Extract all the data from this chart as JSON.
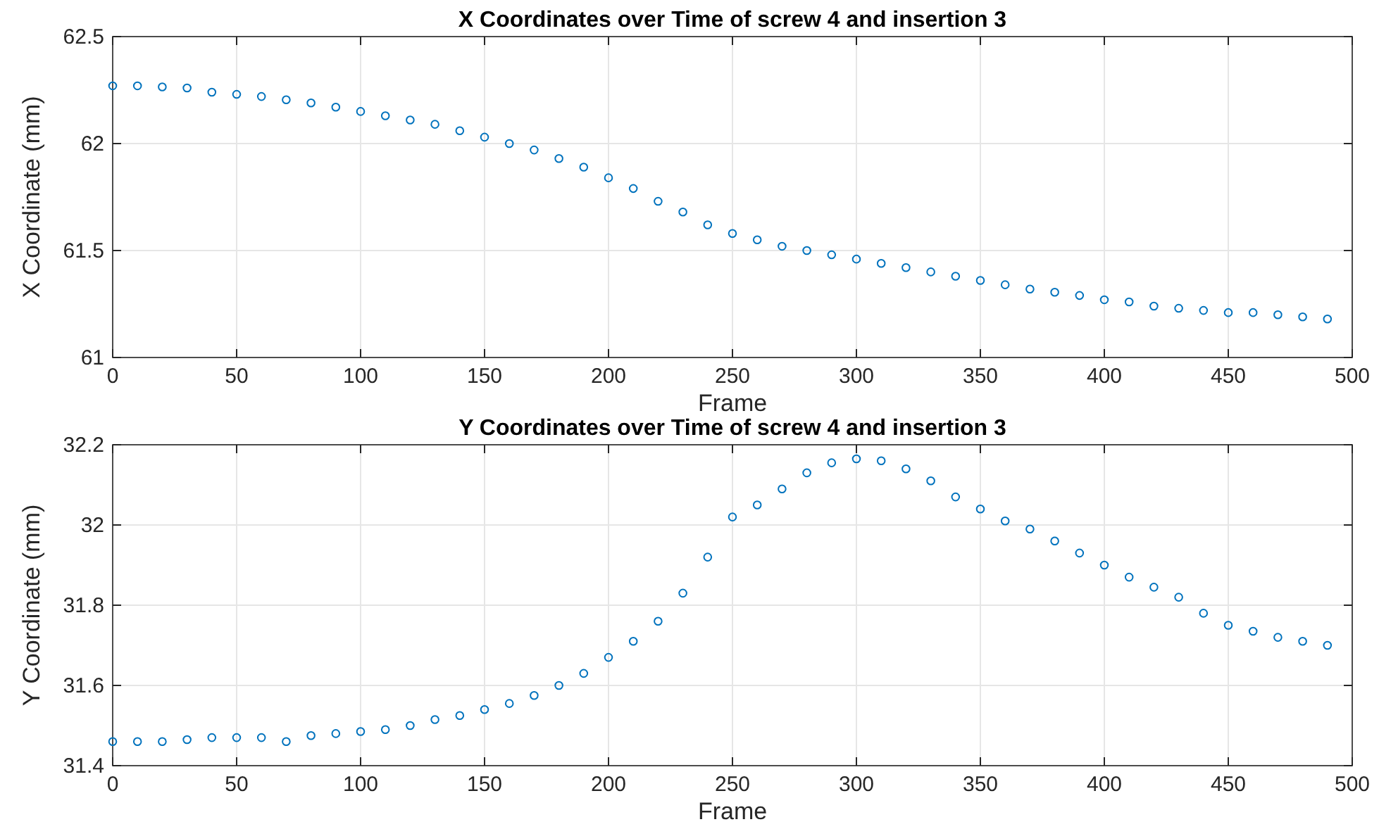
{
  "chart_data": [
    {
      "type": "scatter",
      "title": "X Coordinates over Time of screw 4 and insertion 3",
      "xlabel": "Frame",
      "ylabel": "X Coordinate (mm)",
      "marker": "circle",
      "grid": true,
      "xlim": [
        0,
        500
      ],
      "xticks": [
        0,
        50,
        100,
        150,
        200,
        250,
        300,
        350,
        400,
        450,
        500
      ],
      "ylim": [
        61,
        62.5
      ],
      "yticks": [
        61,
        61.5,
        62,
        62.5
      ],
      "x": [
        0,
        10,
        20,
        30,
        40,
        50,
        60,
        70,
        80,
        90,
        100,
        110,
        120,
        130,
        140,
        150,
        160,
        170,
        180,
        190,
        200,
        210,
        220,
        230,
        240,
        250,
        260,
        270,
        280,
        290,
        300,
        310,
        320,
        330,
        340,
        350,
        360,
        370,
        380,
        390,
        400,
        410,
        420,
        430,
        440,
        450,
        460,
        470,
        480,
        490
      ],
      "series": [
        {
          "color": "#0072bd",
          "values": [
            62.27,
            62.27,
            62.265,
            62.26,
            62.24,
            62.23,
            62.22,
            62.205,
            62.19,
            62.17,
            62.15,
            62.13,
            62.11,
            62.09,
            62.06,
            62.03,
            62.0,
            61.97,
            61.93,
            61.89,
            61.84,
            61.79,
            61.73,
            61.68,
            61.62,
            61.58,
            61.55,
            61.52,
            61.5,
            61.48,
            61.46,
            61.44,
            61.42,
            61.4,
            61.38,
            61.36,
            61.34,
            61.32,
            61.305,
            61.29,
            61.27,
            61.26,
            61.24,
            61.23,
            61.22,
            61.21,
            61.21,
            61.2,
            61.19,
            61.18
          ]
        }
      ]
    },
    {
      "type": "scatter",
      "title": "Y Coordinates over Time of screw 4 and insertion 3",
      "xlabel": "Frame",
      "ylabel": "Y Coordinate (mm)",
      "marker": "circle",
      "grid": true,
      "xlim": [
        0,
        500
      ],
      "xticks": [
        0,
        50,
        100,
        150,
        200,
        250,
        300,
        350,
        400,
        450,
        500
      ],
      "ylim": [
        31.4,
        32.2
      ],
      "yticks": [
        31.4,
        31.6,
        31.8,
        32,
        32.2
      ],
      "x": [
        0,
        10,
        20,
        30,
        40,
        50,
        60,
        70,
        80,
        90,
        100,
        110,
        120,
        130,
        140,
        150,
        160,
        170,
        180,
        190,
        200,
        210,
        220,
        230,
        240,
        250,
        260,
        270,
        280,
        290,
        300,
        310,
        320,
        330,
        340,
        350,
        360,
        370,
        380,
        390,
        400,
        410,
        420,
        430,
        440,
        450,
        460,
        470,
        480,
        490
      ],
      "series": [
        {
          "color": "#0072bd",
          "values": [
            31.46,
            31.46,
            31.46,
            31.465,
            31.47,
            31.47,
            31.47,
            31.46,
            31.475,
            31.48,
            31.485,
            31.49,
            31.5,
            31.515,
            31.525,
            31.54,
            31.555,
            31.575,
            31.6,
            31.63,
            31.67,
            31.71,
            31.76,
            31.83,
            31.92,
            32.02,
            32.05,
            32.09,
            32.13,
            32.155,
            32.165,
            32.16,
            32.14,
            32.11,
            32.07,
            32.04,
            32.01,
            31.99,
            31.96,
            31.93,
            31.9,
            31.87,
            31.845,
            31.82,
            31.78,
            31.75,
            31.735,
            31.72,
            31.71,
            31.7
          ]
        }
      ]
    }
  ]
}
